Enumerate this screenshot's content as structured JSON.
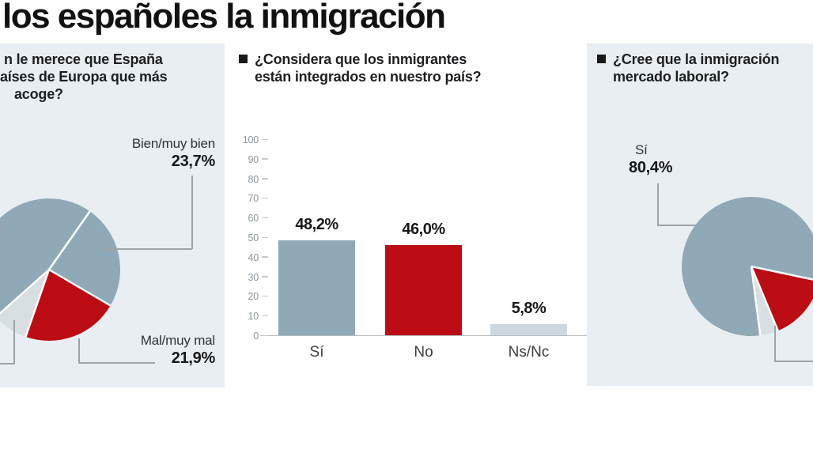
{
  "title": "los españoles la inmigración",
  "panels": {
    "left": {
      "question_lines": [
        "n le merece que España",
        "aíses de Europa que más",
        "acoge?"
      ],
      "labels": {
        "bien": {
          "name": "Bien/muy bien",
          "pct": "23,7%"
        },
        "mal": {
          "name": "Mal/muy mal",
          "pct": "21,9%"
        }
      }
    },
    "middle": {
      "question_lines": [
        "¿Considera que los inmigrantes",
        "están integrados en nuestro país?"
      ]
    },
    "right": {
      "question_lines": [
        "¿Cree que la inmigración",
        "mercado laboral?"
      ],
      "labels": {
        "si": {
          "name": "Sí",
          "pct": "80,4%"
        }
      }
    }
  },
  "colors": {
    "steel_blue": "#8fa9b6",
    "red": "#bd0d14",
    "bar_light_gray": "#ccd8dd",
    "pie_light_gray": "#d7dfe3",
    "panel_bg": "#e8eef2",
    "callout_line": "#9da4a8",
    "axis_line": "#b6bdc1",
    "tick_text": "#8d969b",
    "text_dark": "#1d1f21"
  },
  "chart_data": [
    {
      "type": "pie",
      "question": "n le merece que España aíses de Europa que más acoge?",
      "start_angle_deg": 35,
      "clockwise": true,
      "slices": [
        {
          "label": "Bien/muy bien",
          "pct_label": "23,7%",
          "value": 23.7,
          "color": "#8fa9b6"
        },
        {
          "label": "Mal/muy mal",
          "pct_label": "21,9%",
          "value": 21.9,
          "color": "#bd0d14"
        },
        {
          "label": "",
          "pct_label": "",
          "value": 8.1,
          "color": "#d7dfe3"
        },
        {
          "label": "",
          "pct_label": "",
          "value": 46.3,
          "color": "#8fa9b6"
        }
      ]
    },
    {
      "type": "bar",
      "question": "¿Considera que los inmigrantes están integrados en nuestro país?",
      "categories": [
        "Sí",
        "No",
        "Ns/Nc"
      ],
      "values": [
        48.2,
        46.0,
        5.8
      ],
      "value_labels": [
        "48,2%",
        "46,0%",
        "5,8%"
      ],
      "bar_colors": [
        "#8fa9b6",
        "#bd0d14",
        "#ccd8dd"
      ],
      "ylim": [
        0,
        100
      ],
      "yticks": [
        0,
        10,
        20,
        30,
        40,
        50,
        60,
        70,
        80,
        90,
        100
      ],
      "grid": false,
      "xlabel": "",
      "ylabel": ""
    },
    {
      "type": "pie",
      "question": "¿Cree que la inmigración mercado laboral?",
      "start_angle_deg": 102,
      "clockwise": true,
      "slices": [
        {
          "label": "",
          "pct_label": "",
          "value": 15.4,
          "color": "#bd0d14"
        },
        {
          "label": "",
          "pct_label": "",
          "value": 4.2,
          "color": "#d7dfe3"
        },
        {
          "label": "Sí",
          "pct_label": "80,4%",
          "value": 80.4,
          "color": "#8fa9b6"
        }
      ]
    }
  ]
}
